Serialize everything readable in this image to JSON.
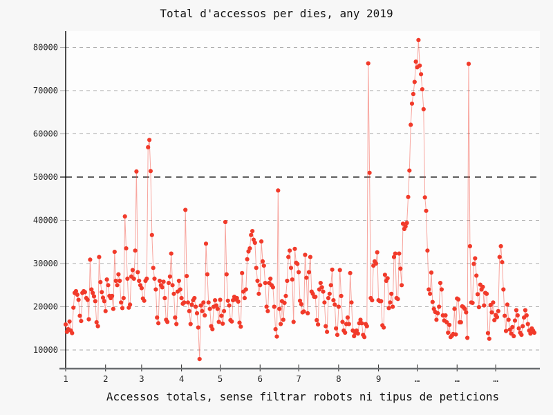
{
  "chart_data": {
    "type": "line",
    "title": "Total d'accessos per dies, any 2019",
    "xlabel": "Accessos totals, sense filtrar robots ni tipus de peticions",
    "ylabel": "",
    "x_unit": "day_of_year_2019",
    "xlim": [
      1,
      366
    ],
    "ylim": [
      5000,
      84000
    ],
    "grid": true,
    "legend_position": "none",
    "x_ticks": [
      {
        "day": 1,
        "label": "1"
      },
      {
        "day": 32,
        "label": "2"
      },
      {
        "day": 60,
        "label": "3"
      },
      {
        "day": 91,
        "label": "4"
      },
      {
        "day": 121,
        "label": "5"
      },
      {
        "day": 152,
        "label": "6"
      },
      {
        "day": 182,
        "label": "7"
      },
      {
        "day": 213,
        "label": "8"
      },
      {
        "day": 244,
        "label": "9"
      },
      {
        "day": 274,
        "label": "…"
      },
      {
        "day": 305,
        "label": "…"
      },
      {
        "day": 335,
        "label": "…"
      }
    ],
    "y_ticks": [
      10000,
      20000,
      30000,
      40000,
      50000,
      60000,
      70000,
      80000
    ],
    "y_tick_emphasis": 50000,
    "values": [
      15900,
      14200,
      14800,
      16600,
      14500,
      13900,
      19800,
      23200,
      23600,
      22800,
      21600,
      17900,
      16700,
      23200,
      23600,
      23400,
      22000,
      21600,
      17100,
      30900,
      24000,
      23200,
      22400,
      21300,
      16400,
      15500,
      31500,
      25700,
      23400,
      22100,
      21300,
      19000,
      26300,
      25000,
      22500,
      22000,
      22500,
      19500,
      32700,
      26000,
      25000,
      27500,
      26000,
      21000,
      19700,
      22000,
      40900,
      33500,
      26500,
      19800,
      20500,
      27000,
      28500,
      26500,
      33000,
      51300,
      28000,
      26000,
      25000,
      24300,
      21900,
      21400,
      26000,
      26500,
      56900,
      58600,
      51400,
      36600,
      29000,
      26500,
      24000,
      17500,
      16200,
      26000,
      25000,
      24500,
      25800,
      22000,
      17000,
      16500,
      25500,
      27000,
      32300,
      25000,
      23000,
      17500,
      16000,
      23500,
      26000,
      24000,
      22000,
      20700,
      21000,
      42400,
      27100,
      21000,
      19000,
      16000,
      20500,
      21500,
      22000,
      20000,
      18500,
      15200,
      7900,
      20300,
      19000,
      21000,
      18000,
      34600,
      27500,
      21000,
      19500,
      15500,
      14800,
      20000,
      21500,
      20300,
      19500,
      16500,
      21600,
      17900,
      16100,
      19000,
      39600,
      27500,
      21400,
      20300,
      16900,
      16600,
      21500,
      22300,
      21700,
      22000,
      21200,
      16300,
      15400,
      27800,
      23500,
      22000,
      24000,
      31000,
      32800,
      33500,
      36600,
      37500,
      35500,
      34800,
      29000,
      26000,
      23000,
      25000,
      35100,
      30500,
      29500,
      25500,
      20000,
      19000,
      25500,
      26500,
      25000,
      24500,
      20000,
      14800,
      13100,
      46900,
      19500,
      16000,
      21300,
      17000,
      20900,
      22500,
      26000,
      31500,
      33000,
      29000,
      26300,
      16500,
      33400,
      30200,
      29900,
      28000,
      21400,
      20600,
      18700,
      18900,
      32000,
      26700,
      18500,
      28000,
      31500,
      23500,
      23000,
      22300,
      22300,
      16900,
      15900,
      24000,
      25500,
      24500,
      23500,
      21000,
      15500,
      14200,
      22000,
      23000,
      25000,
      28600,
      21500,
      20500,
      15000,
      13500,
      20000,
      28500,
      22500,
      16500,
      14500,
      14000,
      16000,
      17500,
      16000,
      27800,
      21000,
      14500,
      13200,
      14000,
      14500,
      13800,
      16200,
      17000,
      16200,
      13500,
      13000,
      16000,
      15500,
      76300,
      51000,
      22000,
      21500,
      29500,
      30500,
      30000,
      32600,
      21500,
      21300,
      21300,
      15700,
      15200,
      27400,
      26000,
      26600,
      19700,
      21000,
      23000,
      20000,
      31500,
      32300,
      22000,
      21800,
      32300,
      28800,
      25000,
      39200,
      38000,
      38600,
      39400,
      45400,
      51500,
      62100,
      67000,
      69200,
      72000,
      76700,
      75400,
      81700,
      75800,
      73800,
      70300,
      65700,
      45300,
      42200,
      33000,
      24000,
      23000,
      27900,
      21100,
      19500,
      18800,
      17000,
      18500,
      20000,
      25500,
      24000,
      18000,
      16800,
      18000,
      16400,
      14000,
      15800,
      13000,
      13300,
      13700,
      19500,
      13600,
      21900,
      21700,
      16400,
      16400,
      20100,
      19900,
      19500,
      18700,
      12800,
      76200,
      34000,
      21000,
      20900,
      29900,
      31200,
      27200,
      22900,
      19900,
      25100,
      24000,
      24600,
      20300,
      23200,
      23000,
      13900,
      12600,
      20400,
      18700,
      21000,
      16900,
      18100,
      17600,
      19000,
      31500,
      34000,
      30300,
      24000,
      17900,
      14400,
      20500,
      17000,
      14700,
      13800,
      15300,
      13200,
      16800,
      19200,
      18000,
      15000,
      14000,
      13500,
      15500,
      17500,
      19200,
      18000,
      16000,
      14500,
      13800,
      15000,
      14500,
      14000
    ],
    "colors": {
      "marker": "#f13a2a",
      "line": "#f13a2a",
      "grid": "#a9a9a9",
      "grid_emphasis": "#2a2a2a",
      "y_axis": "#000000",
      "x_axis": "#6b6e71",
      "background": "#f7f7f7",
      "plot_background": "#fdfdfd",
      "text": "#262626"
    }
  }
}
